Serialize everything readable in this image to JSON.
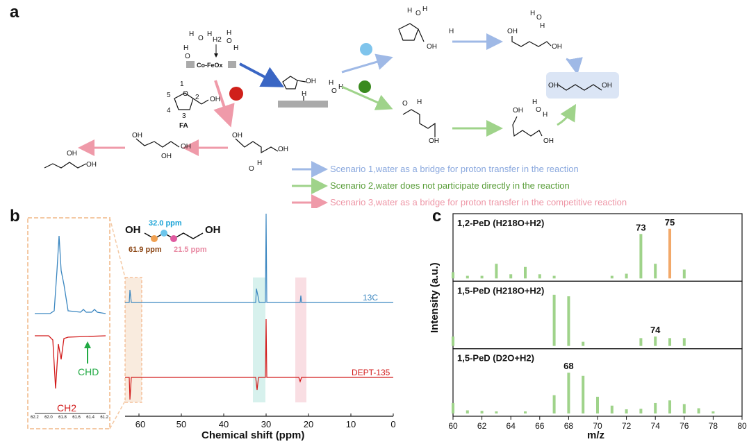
{
  "panels": {
    "a": "a",
    "b": "b",
    "c": "c"
  },
  "scheme": {
    "catalyst": "Co-FeOx",
    "h2": "H2",
    "fa_label": "FA",
    "atom_numbers": [
      "1",
      "2",
      "3",
      "4",
      "5"
    ],
    "oh": "OH",
    "h": "H",
    "o": "O",
    "scenarios": [
      {
        "text": "Scenario 1,water as a bridge for proton transfer in the reaction",
        "color": "#8aa8de"
      },
      {
        "text": "Scenario 2,water does not participate directly in the reaction",
        "color": "#5a9e3a"
      },
      {
        "text": "Scenario 3,water as a bridge for proton transfer in the competitive reaction",
        "color": "#ee96a6"
      }
    ],
    "colors": {
      "blue_arrow": "#3a66c4",
      "light_blue": "#9fb9e6",
      "green": "#9fd38a",
      "pink": "#ef9aa9",
      "red": "#cc1a1a",
      "product_box": "#dbe5f5"
    }
  },
  "nmr": {
    "shifts": {
      "c2": "32.0 ppm",
      "c1": "61.9 ppm",
      "c3": "21.5 ppm"
    },
    "shift_colors": {
      "c2": "#1aa3d6",
      "c1": "#8b4513",
      "c3": "#e88aa3"
    },
    "c13_label": "13C",
    "dept_label": "DEPT-135",
    "xlabel": "Chemical shift (ppm)",
    "xticks": [
      "60",
      "50",
      "40",
      "30",
      "20",
      "10",
      "0"
    ],
    "inset_ticks": [
      "62.2",
      "62.0",
      "61.8",
      "61.6",
      "61.4",
      "61.2"
    ],
    "ch2_label": "CH2",
    "chd_label": "CHD"
  },
  "chart_data": {
    "type": "bar",
    "xlabel": "m/z",
    "ylabel": "Intensity (a.u.)",
    "xlim": [
      60,
      80
    ],
    "xticks": [
      60,
      62,
      64,
      66,
      68,
      70,
      72,
      74,
      76,
      78,
      80
    ],
    "panels": [
      {
        "name": "1,2-PeD (H218O+H2)",
        "label_main": "1,2-PeD (H",
        "label_sup": "18",
        "label_tail": "O+H",
        "label_sub": "2",
        "label_end": ")",
        "peaks": [
          [
            60,
            0.12
          ],
          [
            61,
            0.05
          ],
          [
            62,
            0.05
          ],
          [
            63,
            0.28
          ],
          [
            64,
            0.08
          ],
          [
            65,
            0.22
          ],
          [
            66,
            0.08
          ],
          [
            67,
            0.05
          ],
          [
            71,
            0.05
          ],
          [
            72,
            0.09
          ],
          [
            73,
            0.85
          ],
          [
            74,
            0.28
          ],
          [
            75,
            0.95
          ],
          [
            76,
            0.17
          ]
        ],
        "highlight": 75,
        "annotations": [
          {
            "x": 73,
            "text": "73"
          },
          {
            "x": 75,
            "text": "75"
          }
        ]
      },
      {
        "name": "1,5-PeD (H218O+H2)",
        "label_main": "1,5-PeD (H",
        "label_sup": "18",
        "label_tail": "O+H",
        "label_sub": "2",
        "label_end": ")",
        "peaks": [
          [
            60,
            0.18
          ],
          [
            67,
            0.98
          ],
          [
            68,
            0.95
          ],
          [
            69,
            0.08
          ],
          [
            73,
            0.15
          ],
          [
            74,
            0.18
          ],
          [
            75,
            0.15
          ],
          [
            76,
            0.15
          ]
        ],
        "annotations": [
          {
            "x": 74,
            "text": "74"
          }
        ]
      },
      {
        "name": "1,5-PeD (D2O+H2)",
        "label_main": "1,5-PeD (D",
        "label_sup": "",
        "label_tail": "2",
        "label_sub": "",
        "label_end": "O+H2)",
        "peaks": [
          [
            60,
            0.2
          ],
          [
            61,
            0.06
          ],
          [
            62,
            0.05
          ],
          [
            63,
            0.04
          ],
          [
            65,
            0.04
          ],
          [
            67,
            0.35
          ],
          [
            68,
            0.78
          ],
          [
            69,
            0.72
          ],
          [
            70,
            0.32
          ],
          [
            71,
            0.15
          ],
          [
            72,
            0.08
          ],
          [
            73,
            0.09
          ],
          [
            74,
            0.2
          ],
          [
            75,
            0.25
          ],
          [
            76,
            0.18
          ],
          [
            77,
            0.1
          ],
          [
            78,
            0.04
          ]
        ],
        "annotations": [
          {
            "x": 68,
            "text": "68"
          }
        ]
      }
    ],
    "bar_color": "#9fd38a",
    "highlight_color": "#f2a96a"
  }
}
